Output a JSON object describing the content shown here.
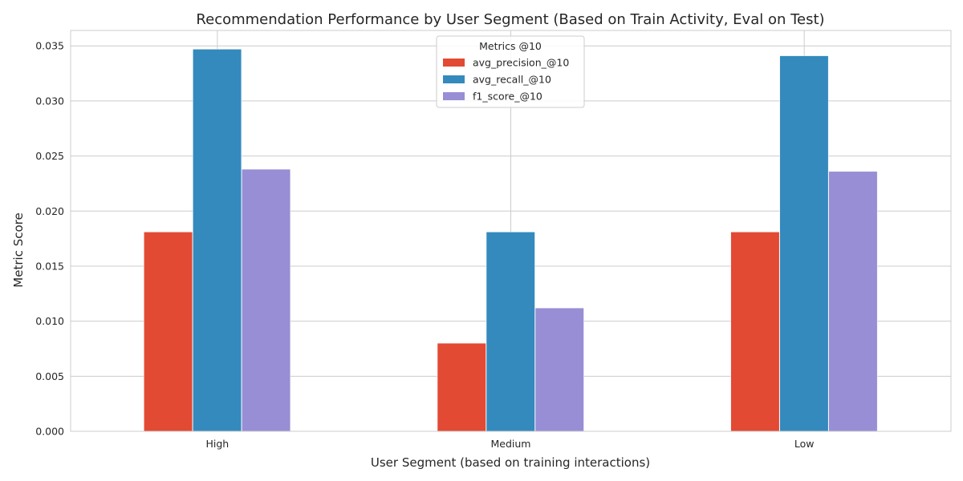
{
  "chart_data": {
    "type": "bar",
    "title": "Recommendation Performance by User Segment (Based on Train Activity, Eval on Test)",
    "xlabel": "User Segment (based on training interactions)",
    "ylabel": "Metric Score",
    "categories": [
      "High",
      "Medium",
      "Low"
    ],
    "series": [
      {
        "name": "avg_precision_@10",
        "color": "#E24A33",
        "values": [
          0.0181,
          0.008,
          0.0181
        ]
      },
      {
        "name": "avg_recall_@10",
        "color": "#348ABD",
        "values": [
          0.0347,
          0.0181,
          0.0341
        ]
      },
      {
        "name": "f1_score_@10",
        "color": "#988ED5",
        "values": [
          0.0238,
          0.0112,
          0.0236
        ]
      }
    ],
    "ylim": [
      0,
      0.0364
    ],
    "yticks": [
      "0.000",
      "0.005",
      "0.010",
      "0.015",
      "0.020",
      "0.025",
      "0.030",
      "0.035"
    ],
    "grid": true,
    "legend": {
      "title": "Metrics @10",
      "placement": "top-center"
    }
  }
}
